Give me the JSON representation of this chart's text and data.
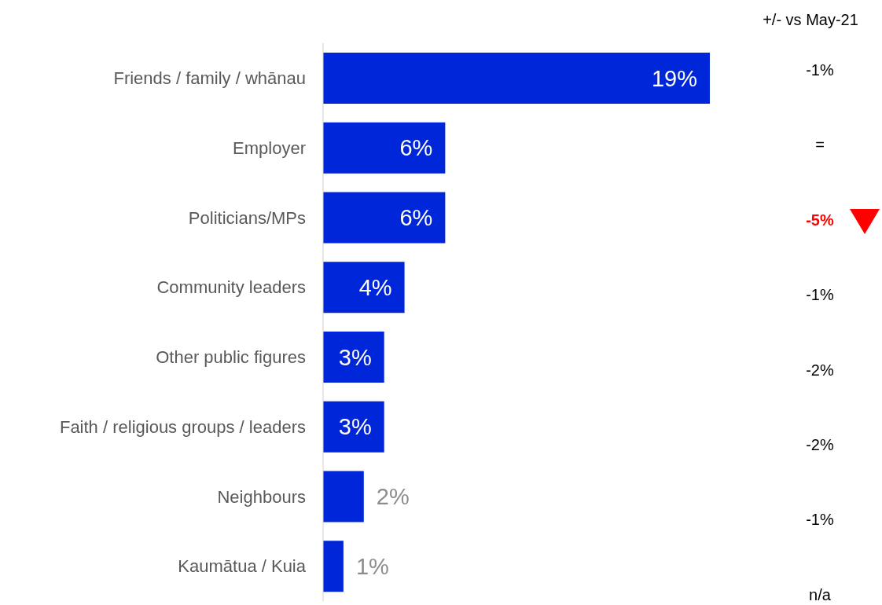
{
  "chart_data": {
    "type": "bar",
    "orientation": "horizontal",
    "categories": [
      "Friends / family / whānau",
      "Employer",
      "Politicians/MPs",
      "Community leaders",
      "Other public figures",
      "Faith / religious groups / leaders",
      "Neighbours",
      "Kaumātua / Kuia"
    ],
    "values": [
      19,
      6,
      6,
      4,
      3,
      3,
      2,
      1
    ],
    "color": "#0026d9",
    "data_labels": true,
    "value_labels": [
      "19%",
      "6%",
      "6%",
      "4%",
      "3%",
      "3%",
      "2%",
      "1%"
    ],
    "annotations": [
      "+/- vs May-21",
      "-1%",
      "=",
      "-5%",
      "-1%",
      "-2%",
      "-2%",
      "-1%",
      "n/a"
    ]
  }
}
